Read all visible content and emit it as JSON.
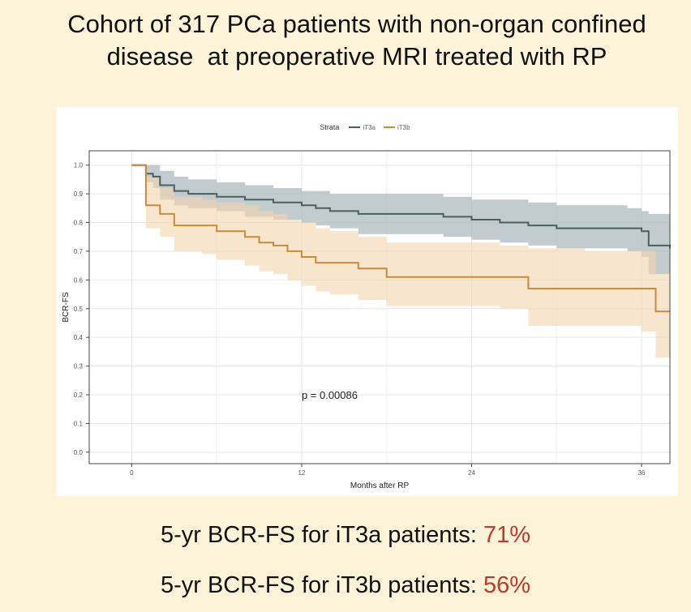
{
  "title": {
    "line1": "Cohort of 317 PCa patients with non-organ confined",
    "line2": "disease  at preoperative MRI treated with RP"
  },
  "chart_data": {
    "type": "line",
    "subtype": "kaplan-meier",
    "xlabel": "Months after RP",
    "ylabel": "BCR-FS",
    "xlim": [
      -3,
      38
    ],
    "ylim": [
      -0.04,
      1.05
    ],
    "x_ticks": [
      0,
      12,
      24,
      36
    ],
    "y_ticks": [
      0.0,
      0.1,
      0.2,
      0.3,
      0.4,
      0.5,
      0.6,
      0.7,
      0.8,
      0.9,
      1.0
    ],
    "grid": true,
    "legend": {
      "title": "Strata",
      "position": "top"
    },
    "annotation": "p = 0.00086",
    "annotation_pos": {
      "x": 12,
      "y": 0.2
    },
    "series": [
      {
        "name": "iT3a",
        "color": "#4a5f60",
        "band_color": "#a8b6bb",
        "x": [
          0,
          1,
          1.5,
          2,
          3,
          4,
          6,
          8,
          10,
          12,
          13,
          14,
          16,
          18,
          20,
          22,
          24,
          26,
          28,
          30,
          33,
          35,
          36,
          36.5,
          38
        ],
        "y": [
          1.0,
          0.97,
          0.96,
          0.93,
          0.91,
          0.9,
          0.89,
          0.88,
          0.87,
          0.86,
          0.85,
          0.84,
          0.83,
          0.83,
          0.83,
          0.82,
          0.81,
          0.8,
          0.79,
          0.78,
          0.78,
          0.78,
          0.77,
          0.72,
          0.71
        ],
        "lower": [
          1.0,
          0.94,
          0.92,
          0.88,
          0.86,
          0.85,
          0.84,
          0.82,
          0.81,
          0.8,
          0.79,
          0.78,
          0.76,
          0.76,
          0.76,
          0.75,
          0.74,
          0.73,
          0.72,
          0.71,
          0.71,
          0.7,
          0.68,
          0.62,
          0.61
        ],
        "upper": [
          1.0,
          1.0,
          1.0,
          0.98,
          0.96,
          0.95,
          0.94,
          0.93,
          0.92,
          0.91,
          0.91,
          0.9,
          0.9,
          0.9,
          0.9,
          0.89,
          0.88,
          0.88,
          0.87,
          0.86,
          0.86,
          0.85,
          0.84,
          0.83,
          0.83
        ]
      },
      {
        "name": "iT3b",
        "color": "#c98a3a",
        "band_color": "#f1d3ae",
        "x": [
          0,
          1,
          2,
          3,
          5,
          6,
          8,
          9,
          10,
          11,
          12,
          13,
          14,
          16,
          18,
          24,
          26,
          28,
          32,
          36,
          37,
          38
        ],
        "y": [
          1.0,
          0.86,
          0.83,
          0.79,
          0.79,
          0.77,
          0.75,
          0.73,
          0.72,
          0.7,
          0.68,
          0.66,
          0.66,
          0.64,
          0.61,
          0.61,
          0.61,
          0.57,
          0.57,
          0.57,
          0.49,
          0.49
        ],
        "lower": [
          1.0,
          0.78,
          0.75,
          0.7,
          0.69,
          0.67,
          0.65,
          0.63,
          0.62,
          0.6,
          0.58,
          0.56,
          0.55,
          0.53,
          0.51,
          0.51,
          0.5,
          0.44,
          0.44,
          0.42,
          0.33,
          0.33
        ],
        "upper": [
          1.0,
          0.96,
          0.92,
          0.89,
          0.88,
          0.87,
          0.86,
          0.84,
          0.83,
          0.81,
          0.8,
          0.78,
          0.77,
          0.75,
          0.73,
          0.73,
          0.72,
          0.71,
          0.7,
          0.7,
          0.62,
          0.62
        ]
      }
    ]
  },
  "results": [
    {
      "text": "5-yr BCR-FS for iT3a patients: ",
      "pct": "71%"
    },
    {
      "text": "5-yr BCR-FS for iT3b patients: ",
      "pct": "56%"
    }
  ]
}
